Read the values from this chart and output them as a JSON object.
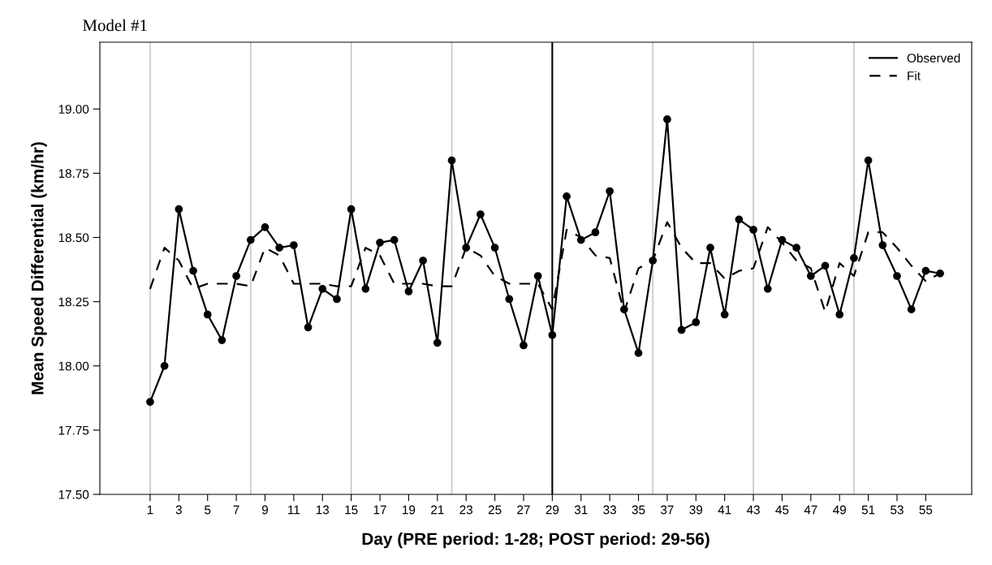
{
  "chart_data": {
    "type": "line",
    "title": "Model #1",
    "xlabel": "Day (PRE period: 1-28; POST period: 29-56)",
    "ylabel": "Mean Speed Differential (km/hr)",
    "x": [
      1,
      2,
      3,
      4,
      5,
      6,
      7,
      8,
      9,
      10,
      11,
      12,
      13,
      14,
      15,
      16,
      17,
      18,
      19,
      20,
      21,
      22,
      23,
      24,
      25,
      26,
      27,
      28,
      29,
      30,
      31,
      32,
      33,
      34,
      35,
      36,
      37,
      38,
      39,
      40,
      41,
      42,
      43,
      44,
      45,
      46,
      47,
      48,
      49,
      50,
      51,
      52,
      53,
      54,
      55,
      56
    ],
    "series": [
      {
        "name": "Observed",
        "color": "#000000",
        "marker": "circle",
        "line_style": "solid",
        "values": [
          17.86,
          18.0,
          18.61,
          18.37,
          18.2,
          18.1,
          18.35,
          18.49,
          18.54,
          18.46,
          18.47,
          18.15,
          18.3,
          18.26,
          18.61,
          18.3,
          18.48,
          18.49,
          18.29,
          18.41,
          18.09,
          18.8,
          18.46,
          18.59,
          18.46,
          18.26,
          18.08,
          18.35,
          18.12,
          18.66,
          18.49,
          18.52,
          18.68,
          18.22,
          18.05,
          18.41,
          18.96,
          18.14,
          18.17,
          18.46,
          18.2,
          18.57,
          18.53,
          18.3,
          18.49,
          18.46,
          18.35,
          18.39,
          18.2,
          18.42,
          18.8,
          18.47,
          18.35,
          18.22,
          18.37,
          18.36
        ]
      },
      {
        "name": "Fit",
        "color": "#000000",
        "marker": "none",
        "line_style": "dashed",
        "values": [
          18.3,
          18.46,
          18.41,
          18.3,
          18.32,
          18.32,
          18.32,
          18.31,
          18.46,
          18.43,
          18.32,
          18.32,
          18.32,
          18.31,
          18.31,
          18.46,
          18.43,
          18.32,
          18.32,
          18.32,
          18.31,
          18.31,
          18.46,
          18.43,
          18.35,
          18.32,
          18.32,
          18.32,
          18.22,
          18.53,
          18.5,
          18.43,
          18.42,
          18.21,
          18.38,
          18.41,
          18.56,
          18.46,
          18.4,
          18.4,
          18.34,
          18.37,
          18.38,
          18.54,
          18.48,
          18.41,
          18.38,
          18.21,
          18.4,
          18.35,
          18.52,
          18.52,
          18.46,
          18.39,
          18.33,
          18.36
        ]
      }
    ],
    "xlim": [
      -2.5,
      58.2
    ],
    "xticks": [
      1,
      3,
      5,
      7,
      9,
      11,
      13,
      15,
      17,
      19,
      21,
      23,
      25,
      27,
      29,
      31,
      33,
      35,
      37,
      39,
      41,
      43,
      45,
      47,
      49,
      51,
      53,
      55
    ],
    "ylim": [
      17.5,
      19.26
    ],
    "yticks": [
      {
        "value": 17.5,
        "label": "17.50"
      },
      {
        "value": 17.75,
        "label": "17.75"
      },
      {
        "value": 18.0,
        "label": "18.00"
      },
      {
        "value": 18.25,
        "label": "18.25"
      },
      {
        "value": 18.5,
        "label": "18.50"
      },
      {
        "value": 18.75,
        "label": "18.75"
      },
      {
        "value": 19.0,
        "label": "19.00"
      }
    ],
    "ref_lines": [
      {
        "axis": "x",
        "value": 1,
        "color": "#c8c8c8"
      },
      {
        "axis": "x",
        "value": 8,
        "color": "#c8c8c8"
      },
      {
        "axis": "x",
        "value": 15,
        "color": "#c8c8c8"
      },
      {
        "axis": "x",
        "value": 22,
        "color": "#c8c8c8"
      },
      {
        "axis": "x",
        "value": 29,
        "color": "#000000"
      },
      {
        "axis": "x",
        "value": 36,
        "color": "#c8c8c8"
      },
      {
        "axis": "x",
        "value": 43,
        "color": "#c8c8c8"
      },
      {
        "axis": "x",
        "value": 50,
        "color": "#c8c8c8"
      }
    ],
    "grid": false,
    "legend": "top right"
  }
}
